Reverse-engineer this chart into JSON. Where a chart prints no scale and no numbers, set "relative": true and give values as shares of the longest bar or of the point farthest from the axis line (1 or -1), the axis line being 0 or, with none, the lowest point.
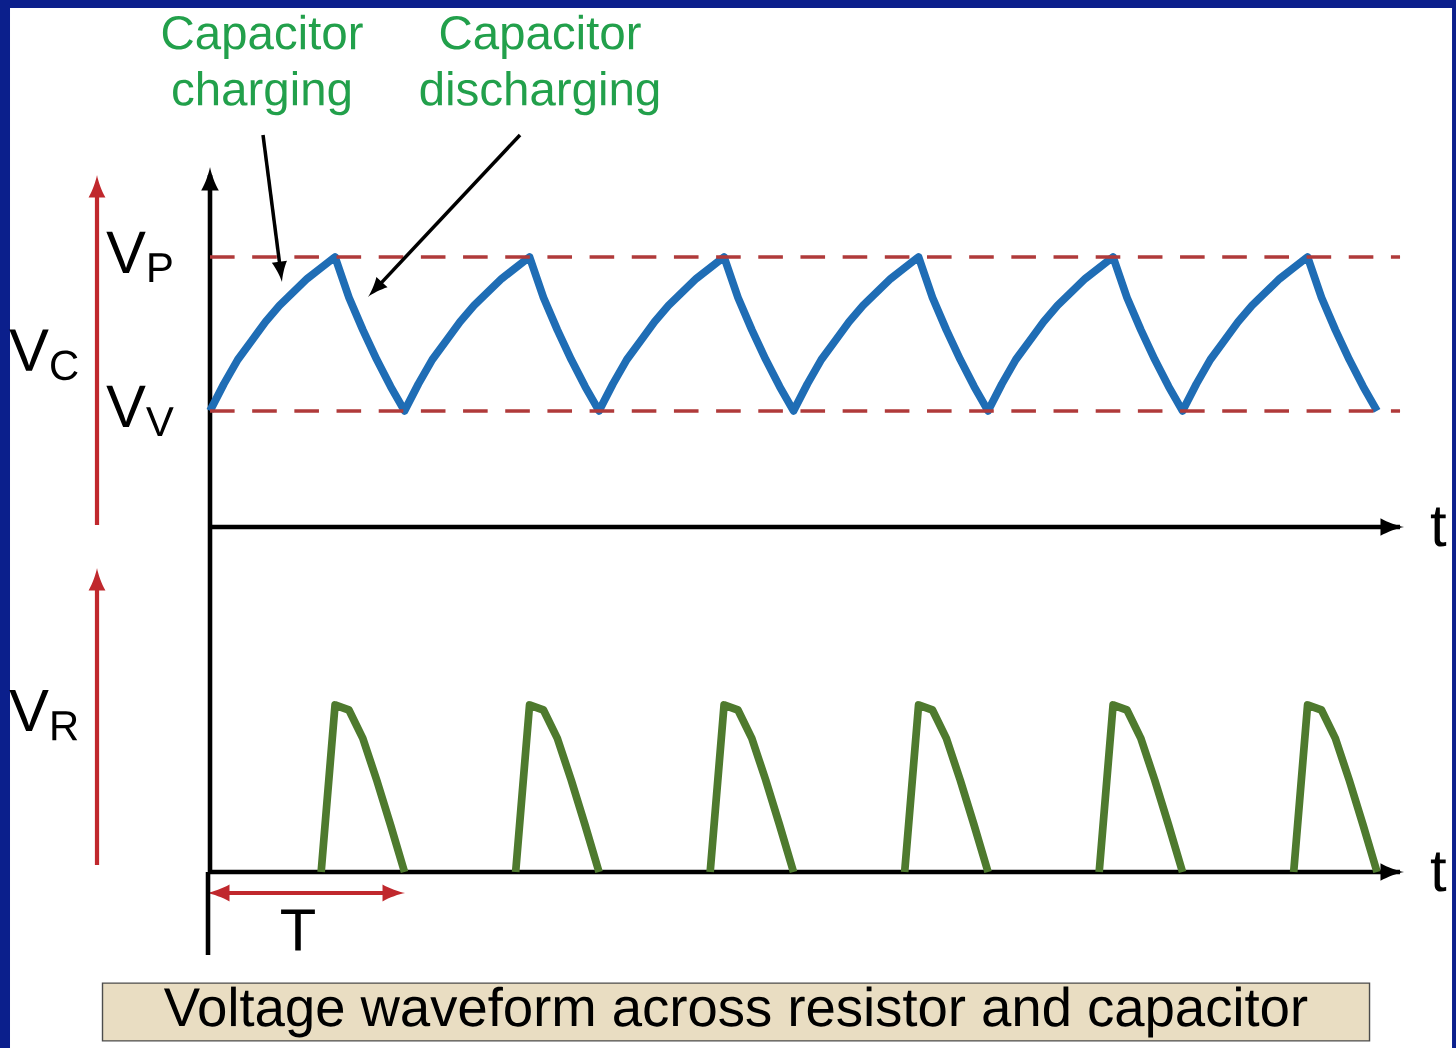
{
  "chart_data": [
    {
      "type": "line",
      "relative": true,
      "xlabel": "t",
      "ylabel": "V$_{C}$",
      "categories": [
        null,
        null,
        null,
        null,
        null,
        null,
        null,
        null,
        null,
        null,
        null,
        null,
        null,
        null,
        null,
        null,
        null,
        null,
        null,
        null,
        null,
        null,
        null,
        null,
        null,
        null,
        null,
        null,
        null,
        null,
        null,
        null,
        null,
        null,
        null,
        null,
        null,
        null,
        null,
        null,
        null,
        null,
        null,
        null,
        null,
        null,
        null,
        null,
        null,
        null,
        null,
        null,
        null,
        null,
        null,
        null,
        null,
        null,
        null,
        null,
        null,
        null,
        null,
        null,
        null,
        null,
        null,
        null,
        null,
        null,
        null,
        null,
        null,
        null,
        null,
        null,
        null,
        null,
        null,
        null,
        null,
        null,
        null,
        null,
        null
      ],
      "series": [
        {
          "color": "#1f6db5",
          "values": [
            0.43,
            0.53,
            0.62,
            0.69,
            0.76,
            0.82,
            0.87,
            0.92,
            0.96,
            1,
            0.85,
            0.73,
            0.62,
            0.52,
            0.43,
            0.53,
            0.62,
            0.69,
            0.76,
            0.82,
            0.87,
            0.92,
            0.96,
            1,
            0.85,
            0.73,
            0.62,
            0.52,
            0.43,
            0.53,
            0.62,
            0.69,
            0.76,
            0.82,
            0.87,
            0.92,
            0.96,
            1,
            0.85,
            0.73,
            0.62,
            0.52,
            0.43,
            0.53,
            0.62,
            0.69,
            0.76,
            0.82,
            0.87,
            0.92,
            0.96,
            1,
            0.85,
            0.73,
            0.62,
            0.52,
            0.43,
            0.53,
            0.62,
            0.69,
            0.76,
            0.82,
            0.87,
            0.92,
            0.96,
            1,
            0.85,
            0.73,
            0.62,
            0.52,
            0.43,
            0.53,
            0.62,
            0.69,
            0.76,
            0.82,
            0.87,
            0.92,
            0.96,
            1,
            0.85,
            0.73,
            0.62,
            0.52,
            0.43
          ]
        }
      ],
      "ref_lines": [
        {
          "axis": "y",
          "value": 1,
          "label": "V$_{P}$",
          "color": "#b03a3a",
          "line_style": "dashed"
        },
        {
          "axis": "y",
          "value": 0.43,
          "label": "V$_{V}$",
          "color": "#b03a3a",
          "line_style": "dashed"
        }
      ],
      "annotations": [
        "Capacitor charging",
        "Capacitor discharging"
      ]
    },
    {
      "type": "line",
      "relative": true,
      "xlabel": "t",
      "ylabel": "V$_{R}$",
      "title": "Voltage waveform across resistor and capacitor",
      "categories": [
        null,
        null,
        null,
        null,
        null,
        null,
        null,
        null,
        null,
        null,
        null,
        null,
        null,
        null,
        null,
        null,
        null,
        null,
        null,
        null,
        null,
        null,
        null,
        null,
        null,
        null,
        null,
        null,
        null,
        null,
        null,
        null,
        null,
        null,
        null,
        null,
        null,
        null,
        null,
        null,
        null,
        null,
        null,
        null,
        null,
        null,
        null,
        null,
        null,
        null,
        null,
        null,
        null,
        null,
        null,
        null,
        null,
        null,
        null,
        null,
        null,
        null,
        null,
        null,
        null,
        null,
        null,
        null,
        null,
        null,
        null,
        null,
        null,
        null,
        null,
        null,
        null,
        null,
        null,
        null,
        null,
        null,
        null,
        null,
        null
      ],
      "series": [
        {
          "color": "#4e7a2e",
          "values": [
            null,
            null,
            null,
            null,
            null,
            null,
            null,
            null,
            0,
            1,
            0.97,
            0.8,
            0.55,
            0.28,
            0,
            null,
            null,
            null,
            null,
            null,
            null,
            null,
            0,
            1,
            0.97,
            0.8,
            0.55,
            0.28,
            0,
            null,
            null,
            null,
            null,
            null,
            null,
            null,
            0,
            1,
            0.97,
            0.8,
            0.55,
            0.28,
            0,
            null,
            null,
            null,
            null,
            null,
            null,
            null,
            0,
            1,
            0.97,
            0.8,
            0.55,
            0.28,
            0,
            null,
            null,
            null,
            null,
            null,
            null,
            null,
            0,
            1,
            0.97,
            0.8,
            0.55,
            0.28,
            0,
            null,
            null,
            null,
            null,
            null,
            null,
            null,
            0,
            1,
            0.97,
            0.8,
            0.55,
            0.28,
            0
          ]
        }
      ],
      "annotations": [
        "T"
      ]
    }
  ]
}
